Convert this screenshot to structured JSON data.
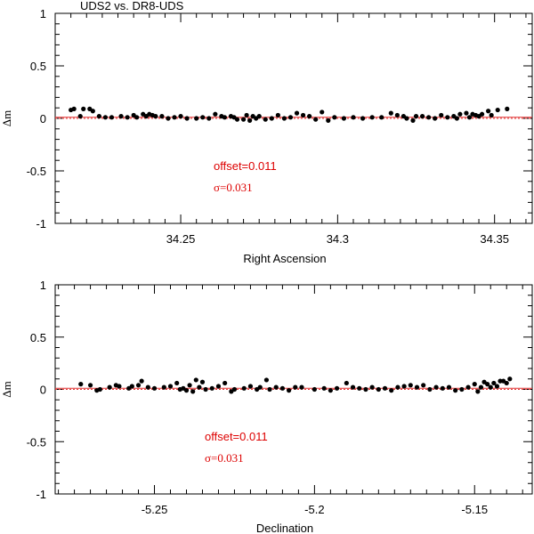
{
  "colors": {
    "axis": "#000000",
    "point": "#000000",
    "offset_line": "#e03030",
    "zero_line": "#e03030",
    "annotation": "#dd0000"
  },
  "chart_data": [
    {
      "type": "scatter",
      "title": "UDS2 vs. DR8-UDS",
      "xlabel": "Right Ascension",
      "ylabel": "Δm",
      "xlim": [
        34.21,
        34.362
      ],
      "ylim": [
        -1,
        1
      ],
      "xticks": [
        34.25,
        34.3,
        34.35
      ],
      "xtick_labels": [
        "34.25",
        "34.3",
        "34.35"
      ],
      "yticks": [
        -1,
        -0.5,
        0,
        0.5,
        1
      ],
      "ytick_labels": [
        "-1",
        "-0.5",
        "0",
        "0.5",
        "1"
      ],
      "offset_line": 0.011,
      "zero_line": 0,
      "annotation_offset": "offset=0.011",
      "annotation_sigma": "σ=0.031",
      "points": [
        [
          34.215,
          0.08
        ],
        [
          34.216,
          0.09
        ],
        [
          34.218,
          0.02
        ],
        [
          34.219,
          0.09
        ],
        [
          34.221,
          0.09
        ],
        [
          34.222,
          0.07
        ],
        [
          34.224,
          0.02
        ],
        [
          34.226,
          0.01
        ],
        [
          34.228,
          0.01
        ],
        [
          34.231,
          0.02
        ],
        [
          34.233,
          0.01
        ],
        [
          34.235,
          0.03
        ],
        [
          34.236,
          0.01
        ],
        [
          34.238,
          0.04
        ],
        [
          34.239,
          0.02
        ],
        [
          34.24,
          0.04
        ],
        [
          34.241,
          0.03
        ],
        [
          34.242,
          0.02
        ],
        [
          34.244,
          0.02
        ],
        [
          34.246,
          0.0
        ],
        [
          34.248,
          0.01
        ],
        [
          34.25,
          0.02
        ],
        [
          34.252,
          0.0
        ],
        [
          34.255,
          0.0
        ],
        [
          34.257,
          0.01
        ],
        [
          34.259,
          0.0
        ],
        [
          34.261,
          0.04
        ],
        [
          34.263,
          0.02
        ],
        [
          34.264,
          0.01
        ],
        [
          34.266,
          0.02
        ],
        [
          34.267,
          0.01
        ],
        [
          34.268,
          -0.01
        ],
        [
          34.27,
          -0.01
        ],
        [
          34.271,
          0.03
        ],
        [
          34.272,
          -0.02
        ],
        [
          34.273,
          0.02
        ],
        [
          34.274,
          0.0
        ],
        [
          34.275,
          0.02
        ],
        [
          34.277,
          -0.01
        ],
        [
          34.279,
          0.0
        ],
        [
          34.281,
          0.03
        ],
        [
          34.283,
          0.0
        ],
        [
          34.285,
          0.01
        ],
        [
          34.287,
          0.05
        ],
        [
          34.289,
          0.03
        ],
        [
          34.291,
          0.02
        ],
        [
          34.293,
          -0.01
        ],
        [
          34.295,
          0.06
        ],
        [
          34.297,
          -0.02
        ],
        [
          34.299,
          0.01
        ],
        [
          34.302,
          0.0
        ],
        [
          34.305,
          0.01
        ],
        [
          34.308,
          0.0
        ],
        [
          34.311,
          0.01
        ],
        [
          34.314,
          0.01
        ],
        [
          34.317,
          0.05
        ],
        [
          34.319,
          0.03
        ],
        [
          34.321,
          0.02
        ],
        [
          34.322,
          0.0
        ],
        [
          34.324,
          -0.02
        ],
        [
          34.325,
          0.02
        ],
        [
          34.327,
          0.02
        ],
        [
          34.329,
          0.01
        ],
        [
          34.331,
          0.0
        ],
        [
          34.333,
          0.03
        ],
        [
          34.335,
          0.01
        ],
        [
          34.337,
          0.02
        ],
        [
          34.338,
          0.0
        ],
        [
          34.339,
          0.04
        ],
        [
          34.341,
          0.05
        ],
        [
          34.342,
          0.01
        ],
        [
          34.343,
          0.04
        ],
        [
          34.344,
          0.03
        ],
        [
          34.345,
          0.02
        ],
        [
          34.346,
          0.04
        ],
        [
          34.348,
          0.07
        ],
        [
          34.349,
          0.03
        ],
        [
          34.351,
          0.08
        ],
        [
          34.354,
          0.09
        ]
      ]
    },
    {
      "type": "scatter",
      "title": "",
      "xlabel": "Declination",
      "ylabel": "Δm",
      "xlim": [
        -5.281,
        -5.132
      ],
      "ylim": [
        -1,
        1
      ],
      "xticks": [
        -5.25,
        -5.2,
        -5.15
      ],
      "xtick_labels": [
        "-5.25",
        "-5.2",
        "-5.15"
      ],
      "yticks": [
        -1,
        -0.5,
        0,
        0.5,
        1
      ],
      "ytick_labels": [
        "-1",
        "-0.5",
        "0",
        "0.5",
        "1"
      ],
      "offset_line": 0.011,
      "zero_line": 0,
      "annotation_offset": "offset=0.011",
      "annotation_sigma": "σ=0.031",
      "points": [
        [
          -5.273,
          0.05
        ],
        [
          -5.27,
          0.04
        ],
        [
          -5.268,
          -0.01
        ],
        [
          -5.267,
          0.0
        ],
        [
          -5.264,
          0.02
        ],
        [
          -5.262,
          0.04
        ],
        [
          -5.261,
          0.03
        ],
        [
          -5.258,
          0.01
        ],
        [
          -5.257,
          0.03
        ],
        [
          -5.255,
          0.04
        ],
        [
          -5.254,
          0.08
        ],
        [
          -5.252,
          0.02
        ],
        [
          -5.25,
          0.01
        ],
        [
          -5.247,
          0.02
        ],
        [
          -5.245,
          0.03
        ],
        [
          -5.243,
          0.06
        ],
        [
          -5.242,
          0.0
        ],
        [
          -5.241,
          0.01
        ],
        [
          -5.24,
          -0.01
        ],
        [
          -5.239,
          0.04
        ],
        [
          -5.238,
          -0.02
        ],
        [
          -5.237,
          0.09
        ],
        [
          -5.236,
          0.02
        ],
        [
          -5.235,
          0.07
        ],
        [
          -5.234,
          0.0
        ],
        [
          -5.232,
          0.01
        ],
        [
          -5.23,
          0.03
        ],
        [
          -5.228,
          0.06
        ],
        [
          -5.226,
          -0.02
        ],
        [
          -5.225,
          0.0
        ],
        [
          -5.222,
          0.01
        ],
        [
          -5.22,
          0.03
        ],
        [
          -5.218,
          0.0
        ],
        [
          -5.217,
          0.02
        ],
        [
          -5.215,
          0.09
        ],
        [
          -5.214,
          0.0
        ],
        [
          -5.212,
          0.02
        ],
        [
          -5.21,
          0.01
        ],
        [
          -5.208,
          -0.01
        ],
        [
          -5.206,
          0.02
        ],
        [
          -5.204,
          0.02
        ],
        [
          -5.2,
          0.0
        ],
        [
          -5.197,
          0.01
        ],
        [
          -5.195,
          -0.01
        ],
        [
          -5.193,
          0.01
        ],
        [
          -5.19,
          0.06
        ],
        [
          -5.188,
          0.02
        ],
        [
          -5.186,
          0.01
        ],
        [
          -5.184,
          0.0
        ],
        [
          -5.182,
          0.02
        ],
        [
          -5.18,
          0.0
        ],
        [
          -5.178,
          0.01
        ],
        [
          -5.176,
          -0.01
        ],
        [
          -5.174,
          0.02
        ],
        [
          -5.172,
          0.03
        ],
        [
          -5.17,
          0.04
        ],
        [
          -5.168,
          0.02
        ],
        [
          -5.166,
          0.04
        ],
        [
          -5.164,
          0.0
        ],
        [
          -5.162,
          0.02
        ],
        [
          -5.16,
          0.01
        ],
        [
          -5.158,
          0.02
        ],
        [
          -5.156,
          -0.01
        ],
        [
          -5.154,
          0.0
        ],
        [
          -5.152,
          0.02
        ],
        [
          -5.15,
          0.05
        ],
        [
          -5.149,
          -0.02
        ],
        [
          -5.148,
          0.02
        ],
        [
          -5.147,
          0.07
        ],
        [
          -5.146,
          0.05
        ],
        [
          -5.145,
          0.02
        ],
        [
          -5.144,
          0.06
        ],
        [
          -5.143,
          0.03
        ],
        [
          -5.142,
          0.08
        ],
        [
          -5.141,
          0.08
        ],
        [
          -5.14,
          0.06
        ],
        [
          -5.139,
          0.1
        ]
      ]
    }
  ]
}
